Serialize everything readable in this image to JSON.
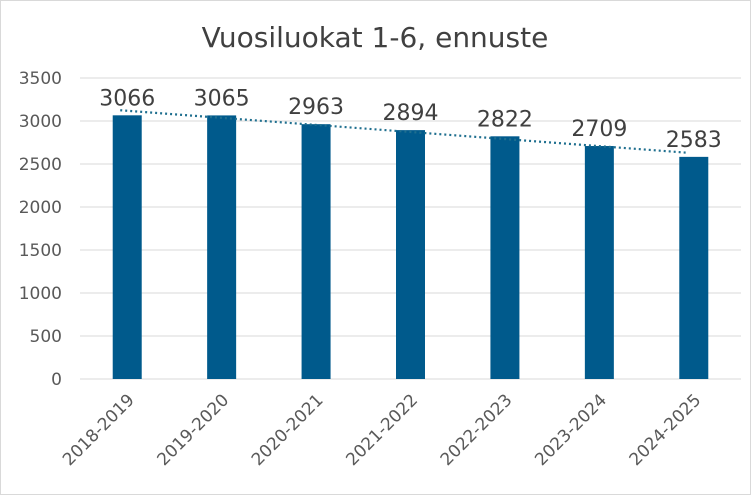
{
  "chart_data": {
    "type": "bar",
    "title": "Vuosiluokat 1-6, ennuste",
    "xlabel": "",
    "ylabel": "",
    "categories": [
      "2018-2019",
      "2019-2020",
      "2020-2021",
      "2021-2022",
      "2022-2023",
      "2023-2024",
      "2024-2025"
    ],
    "values": [
      3066,
      3065,
      2963,
      2894,
      2822,
      2709,
      2583
    ],
    "value_labels": [
      "3066",
      "3065",
      "2963",
      "2894",
      "2822",
      "2709",
      "2583"
    ],
    "ylim": [
      0,
      3500
    ],
    "yticks": [
      "0",
      "500",
      "1000",
      "1500",
      "2000",
      "2500",
      "3000",
      "3500"
    ],
    "grid": true,
    "legend": "none",
    "trendline": {
      "type": "linear",
      "style": "dotted"
    },
    "colors": {
      "bar": "#005A8C",
      "trendline": "#1F6F8F",
      "grid": "#d9d9d9",
      "text": "#404040",
      "axis_text": "#595959"
    }
  }
}
